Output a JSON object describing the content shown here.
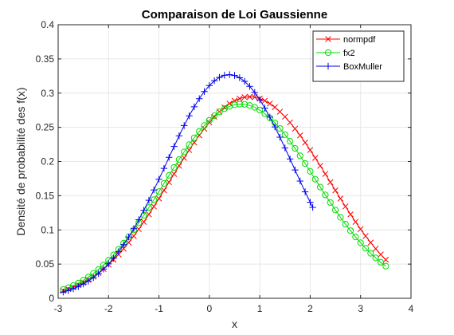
{
  "chart_data": {
    "type": "line",
    "title": "Comparaison de Loi Gaussienne",
    "xlabel": "x",
    "ylabel": "Densité de probabilité des f(x)",
    "xlim": [
      -3,
      4
    ],
    "ylim": [
      0,
      0.4
    ],
    "xticks": [
      -3,
      -2,
      -1,
      0,
      1,
      2,
      3,
      4
    ],
    "yticks": [
      0,
      0.05,
      0.1,
      0.15,
      0.2,
      0.25,
      0.3,
      0.35,
      0.4
    ],
    "xtick_labels": [
      "-3",
      "-2",
      "-1",
      "0",
      "1",
      "2",
      "3",
      "4"
    ],
    "ytick_labels": [
      "0",
      "0.05",
      "0.1",
      "0.15",
      "0.2",
      "0.25",
      "0.3",
      "0.35",
      "0.4"
    ],
    "grid": true,
    "legend_position": "top-right",
    "series": [
      {
        "name": "normpdf",
        "color": "#ff0000",
        "marker": "x",
        "x": [
          -2.9,
          -2.8,
          -2.7,
          -2.6,
          -2.5,
          -2.4,
          -2.3,
          -2.2,
          -2.1,
          -2.0,
          -1.9,
          -1.8,
          -1.7,
          -1.6,
          -1.5,
          -1.4,
          -1.3,
          -1.2,
          -1.1,
          -1.0,
          -0.9,
          -0.8,
          -0.7,
          -0.6,
          -0.5,
          -0.4,
          -0.3,
          -0.2,
          -0.1,
          0.0,
          0.1,
          0.2,
          0.3,
          0.4,
          0.5,
          0.6,
          0.7,
          0.8,
          0.9,
          1.0,
          1.1,
          1.2,
          1.3,
          1.4,
          1.5,
          1.6,
          1.7,
          1.8,
          1.9,
          2.0,
          2.1,
          2.2,
          2.3,
          2.4,
          2.5,
          2.6,
          2.7,
          2.8,
          2.9,
          3.0,
          3.1,
          3.2,
          3.3,
          3.4,
          3.5
        ],
        "y": [
          0.0111,
          0.0134,
          0.0161,
          0.0193,
          0.0229,
          0.027,
          0.0317,
          0.0369,
          0.0428,
          0.0493,
          0.0564,
          0.0641,
          0.0725,
          0.0815,
          0.091,
          0.1011,
          0.1117,
          0.1228,
          0.1342,
          0.1459,
          0.1578,
          0.1698,
          0.1818,
          0.1937,
          0.2053,
          0.2167,
          0.2277,
          0.2382,
          0.248,
          0.2571,
          0.2654,
          0.2728,
          0.2793,
          0.2847,
          0.2889,
          0.292,
          0.294,
          0.2946,
          0.294,
          0.292,
          0.2889,
          0.2847,
          0.2793,
          0.2728,
          0.2654,
          0.2571,
          0.248,
          0.2382,
          0.2277,
          0.2167,
          0.2053,
          0.1937,
          0.1818,
          0.1698,
          0.1578,
          0.1459,
          0.1342,
          0.1228,
          0.1117,
          0.1011,
          0.091,
          0.0815,
          0.0725,
          0.0641,
          0.0564
        ]
      },
      {
        "name": "fx2",
        "color": "#00dd00",
        "marker": "o",
        "x": [
          -2.9,
          -2.8,
          -2.7,
          -2.6,
          -2.5,
          -2.4,
          -2.3,
          -2.2,
          -2.1,
          -2.0,
          -1.9,
          -1.8,
          -1.7,
          -1.6,
          -1.5,
          -1.4,
          -1.3,
          -1.2,
          -1.1,
          -1.0,
          -0.9,
          -0.8,
          -0.7,
          -0.6,
          -0.5,
          -0.4,
          -0.3,
          -0.2,
          -0.1,
          0.0,
          0.1,
          0.2,
          0.3,
          0.4,
          0.5,
          0.6,
          0.7,
          0.8,
          0.9,
          1.0,
          1.1,
          1.2,
          1.3,
          1.4,
          1.5,
          1.6,
          1.7,
          1.8,
          1.9,
          2.0,
          2.1,
          2.2,
          2.3,
          2.4,
          2.5,
          2.6,
          2.7,
          2.8,
          2.9,
          3.0,
          3.1,
          3.2,
          3.3,
          3.4,
          3.5
        ],
        "y": [
          0.0128,
          0.0155,
          0.0187,
          0.0223,
          0.0264,
          0.0311,
          0.0363,
          0.0422,
          0.0487,
          0.0557,
          0.0634,
          0.0717,
          0.0806,
          0.09,
          0.1,
          0.1105,
          0.1214,
          0.1327,
          0.1442,
          0.156,
          0.1679,
          0.1797,
          0.1914,
          0.2029,
          0.214,
          0.2246,
          0.2347,
          0.244,
          0.2526,
          0.2603,
          0.267,
          0.2727,
          0.2773,
          0.2807,
          0.2829,
          0.2839,
          0.2836,
          0.282,
          0.2792,
          0.2752,
          0.27,
          0.2637,
          0.2565,
          0.2483,
          0.2393,
          0.2296,
          0.2192,
          0.2083,
          0.1971,
          0.1857,
          0.1741,
          0.1626,
          0.1512,
          0.14,
          0.1291,
          0.1185,
          0.1084,
          0.0988,
          0.0897,
          0.0812,
          0.0732,
          0.0658,
          0.059,
          0.0527,
          0.047
        ]
      },
      {
        "name": "BoxMuller",
        "color": "#0000ee",
        "marker": "+",
        "x": [
          -2.9,
          -2.8,
          -2.7,
          -2.6,
          -2.5,
          -2.4,
          -2.3,
          -2.2,
          -2.1,
          -2.0,
          -1.9,
          -1.8,
          -1.7,
          -1.6,
          -1.5,
          -1.4,
          -1.3,
          -1.2,
          -1.1,
          -1.0,
          -0.9,
          -0.8,
          -0.7,
          -0.6,
          -0.5,
          -0.4,
          -0.3,
          -0.2,
          -0.1,
          0.0,
          0.1,
          0.2,
          0.3,
          0.4,
          0.5,
          0.6,
          0.7,
          0.8,
          0.9,
          1.0,
          1.1,
          1.2,
          1.3,
          1.4,
          1.5,
          1.6,
          1.7,
          1.8,
          1.9,
          2.0,
          2.05
        ],
        "y": [
          0.0091,
          0.0113,
          0.014,
          0.0172,
          0.0209,
          0.0252,
          0.0303,
          0.0361,
          0.0428,
          0.0503,
          0.0587,
          0.0681,
          0.0784,
          0.0896,
          0.1018,
          0.1149,
          0.1287,
          0.1433,
          0.1585,
          0.1741,
          0.19,
          0.2061,
          0.222,
          0.2376,
          0.2526,
          0.2668,
          0.28,
          0.2919,
          0.3023,
          0.3111,
          0.3181,
          0.3231,
          0.3261,
          0.327,
          0.3258,
          0.3225,
          0.3172,
          0.3099,
          0.3009,
          0.2903,
          0.2782,
          0.2649,
          0.2506,
          0.2355,
          0.2198,
          0.2038,
          0.1876,
          0.1715,
          0.1557,
          0.1404,
          0.133
        ]
      }
    ]
  }
}
